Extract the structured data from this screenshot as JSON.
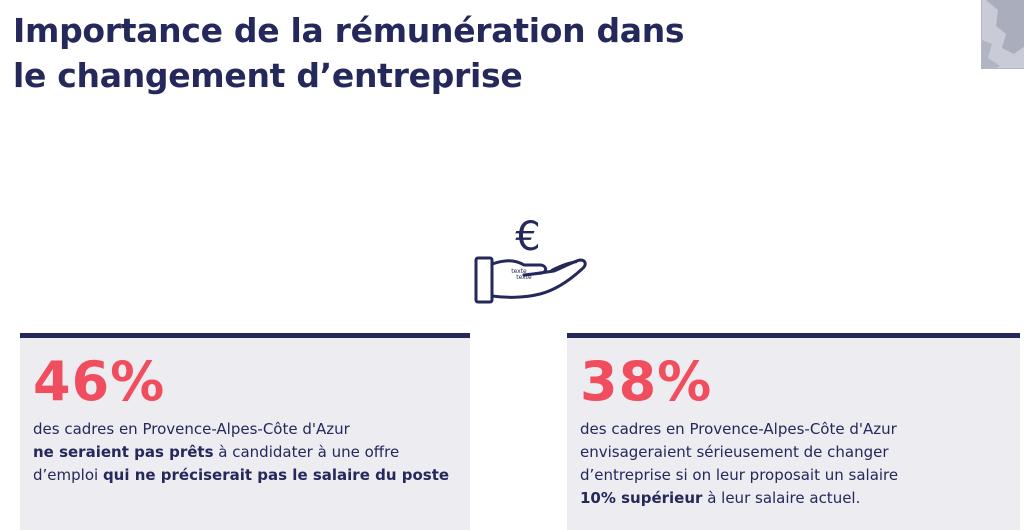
{
  "slide": {
    "title_line1": "Importance de la rémunération dans",
    "title_line2": "le changement d’entreprise"
  },
  "icon": {
    "name": "hand-euro-icon",
    "symbol": "€",
    "label_top": "texte",
    "label_bottom": "texte"
  },
  "colors": {
    "navy": "#24285a",
    "accent": "#f04e5e",
    "card_bg": "#ececf1"
  },
  "stats": [
    {
      "value": "46%",
      "line1": "des cadres en Provence-Alpes-Côte d'Azur",
      "line2_bold": "ne seraient pas prêts",
      "line2_rest": " à candidater à une offre",
      "line3_start": "d’emploi ",
      "line3_bold": "qui ne préciserait pas le salaire du poste"
    },
    {
      "value": "38%",
      "line1": "des cadres en Provence-Alpes-Côte d'Azur",
      "line2": "envisageraient sérieusement de changer",
      "line3": "d’entreprise si on leur proposait un salaire",
      "line4_bold": "10% supérieur",
      "line4_rest": " à leur salaire actuel."
    }
  ]
}
